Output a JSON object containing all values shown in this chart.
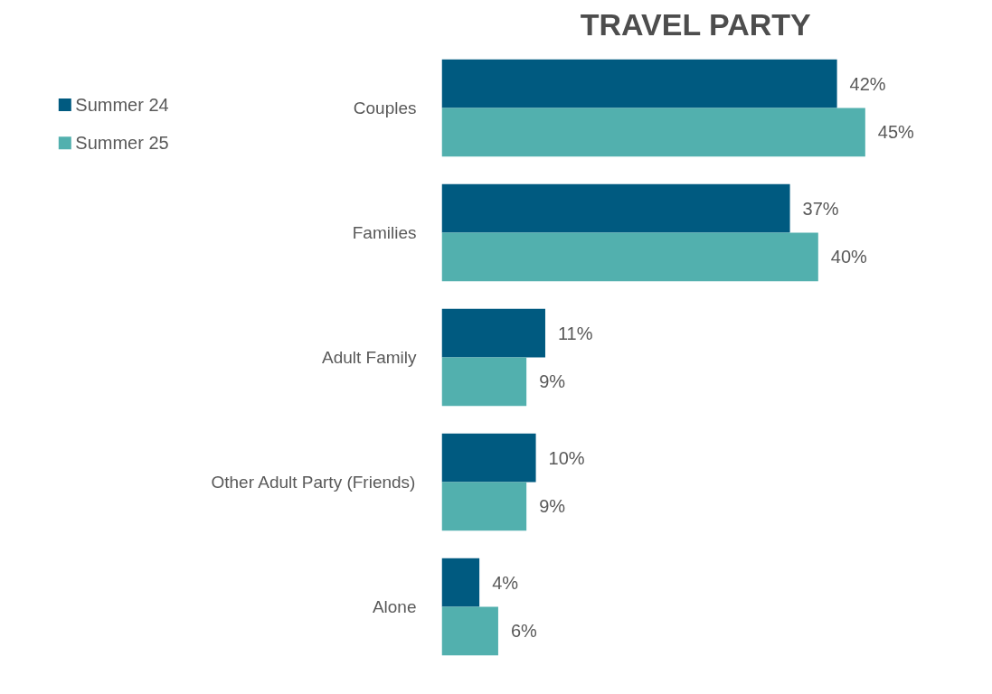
{
  "chart_data": {
    "type": "bar",
    "orientation": "horizontal",
    "title": "TRAVEL PARTY",
    "categories": [
      "Couples",
      "Families",
      "Adult Family",
      "Other Adult Party (Friends)",
      "Alone"
    ],
    "series": [
      {
        "name": "Summer 24",
        "color": "#005a80",
        "values": [
          42,
          37,
          11,
          10,
          4
        ],
        "value_labels": [
          "42%",
          "37%",
          "11%",
          "10%",
          "4%"
        ]
      },
      {
        "name": "Summer 25",
        "color": "#52b0ae",
        "values": [
          45,
          40,
          9,
          9,
          6
        ],
        "value_labels": [
          "45%",
          "40%",
          "9%",
          "9%",
          "6%"
        ]
      }
    ],
    "legend": "top left",
    "grid": false
  }
}
